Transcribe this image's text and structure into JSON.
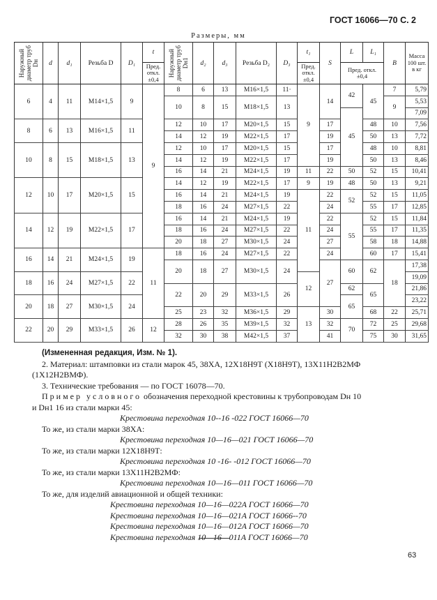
{
  "header": {
    "title": "ГОСТ 16066—70 С. 2"
  },
  "caption": "Размеры, мм",
  "table": {
    "headers": {
      "Dn": "Наружный\nдиаметр труб\nDн",
      "d": "d",
      "d1": "d₁",
      "D": "Резьба D",
      "D1": "D₁",
      "t": "t",
      "t_tol": "Пред.\nоткл.\n±0,4",
      "Dn1": "Наружный\nдиаметр труб\nDн1",
      "d2": "d₂",
      "d3": "d₃",
      "D2": "Резьба D₂",
      "D3": "D₃",
      "t1": "t₁",
      "t1_tol": "Пред.\nоткл.\n±0,4",
      "S": "S",
      "L": "L",
      "L1": "L₁",
      "L_tol": "Пред. откл.\n±0,4",
      "B": "B",
      "mass": "Масса\n100 шт.\nв кг"
    },
    "columns": [
      [
        [
          "6",
          3
        ],
        [
          "8",
          2
        ],
        [
          "10",
          3
        ],
        [
          "12",
          3
        ],
        [
          "14",
          3
        ],
        [
          "16",
          2
        ],
        [
          "18",
          2
        ],
        [
          "20",
          2
        ],
        [
          "22",
          2
        ]
      ],
      [
        [
          "4",
          3
        ],
        [
          "6",
          2
        ],
        [
          "8",
          3
        ],
        [
          "10",
          3
        ],
        [
          "12",
          3
        ],
        [
          "14",
          2
        ],
        [
          "16",
          2
        ],
        [
          "18",
          2
        ],
        [
          "20",
          2
        ]
      ],
      [
        [
          "11",
          3
        ],
        [
          "13",
          2
        ],
        [
          "15",
          3
        ],
        [
          "17",
          3
        ],
        [
          "19",
          3
        ],
        [
          "21",
          2
        ],
        [
          "24",
          2
        ],
        [
          "27",
          2
        ],
        [
          "29",
          2
        ]
      ],
      [
        [
          "M14×1,5",
          3
        ],
        [
          "M16×1,5",
          2
        ],
        [
          "M18×1,5",
          3
        ],
        [
          "M20×1,5",
          3
        ],
        [
          "M22×1,5",
          3
        ],
        [
          "M24×1,5",
          2
        ],
        [
          "M27×1,5",
          2
        ],
        [
          "M30×1,5",
          2
        ],
        [
          "M33×1,5",
          2
        ]
      ],
      [
        [
          "9",
          3
        ],
        [
          "11",
          2
        ],
        [
          "13",
          3
        ],
        [
          "15",
          3
        ],
        [
          "17",
          3
        ],
        [
          "19",
          2
        ],
        [
          "22",
          2
        ],
        [
          "24",
          2
        ],
        [
          "26",
          2
        ]
      ],
      [
        [
          "9",
          14
        ],
        [
          "11",
          6
        ],
        [
          "12",
          2
        ]
      ],
      [
        [
          "8",
          1
        ],
        [
          "10",
          2
        ],
        [
          "12",
          1
        ],
        [
          "14",
          1
        ],
        [
          "12",
          1
        ],
        [
          "14",
          1
        ],
        [
          "16",
          1
        ],
        [
          "14",
          1
        ],
        [
          "16",
          1
        ],
        [
          "18",
          1
        ],
        [
          "16",
          1
        ],
        [
          "18",
          1
        ],
        [
          "20",
          1
        ],
        [
          "18",
          1
        ],
        [
          "20",
          2
        ],
        [
          "22",
          2
        ],
        [
          "25",
          1
        ],
        [
          "28",
          1
        ],
        [
          "32",
          1
        ]
      ],
      [
        [
          "6",
          1
        ],
        [
          "8",
          2
        ],
        [
          "10",
          1
        ],
        [
          "12",
          1
        ],
        [
          "10",
          1
        ],
        [
          "12",
          1
        ],
        [
          "14",
          1
        ],
        [
          "12",
          1
        ],
        [
          "14",
          1
        ],
        [
          "16",
          1
        ],
        [
          "14",
          1
        ],
        [
          "16",
          1
        ],
        [
          "18",
          1
        ],
        [
          "16",
          1
        ],
        [
          "18",
          2
        ],
        [
          "20",
          2
        ],
        [
          "23",
          1
        ],
        [
          "26",
          1
        ],
        [
          "30",
          1
        ]
      ],
      [
        [
          "13",
          1
        ],
        [
          "15",
          2
        ],
        [
          "17",
          1
        ],
        [
          "19",
          1
        ],
        [
          "17",
          1
        ],
        [
          "19",
          1
        ],
        [
          "21",
          1
        ],
        [
          "19",
          1
        ],
        [
          "21",
          1
        ],
        [
          "24",
          1
        ],
        [
          "21",
          1
        ],
        [
          "24",
          1
        ],
        [
          "27",
          1
        ],
        [
          "24",
          1
        ],
        [
          "27",
          2
        ],
        [
          "29",
          2
        ],
        [
          "32",
          1
        ],
        [
          "35",
          1
        ],
        [
          "38",
          1
        ]
      ],
      [
        [
          "M16×1,5",
          1
        ],
        [
          "M18×1,5",
          2
        ],
        [
          "M20×1,5",
          1
        ],
        [
          "M22×1,5",
          1
        ],
        [
          "M20×1,5",
          1
        ],
        [
          "M22×1,5",
          1
        ],
        [
          "M24×1,5",
          1
        ],
        [
          "M22×1,5",
          1
        ],
        [
          "M24×1,5",
          1
        ],
        [
          "M27×1,5",
          1
        ],
        [
          "M24×1,5",
          1
        ],
        [
          "M27×1,5",
          1
        ],
        [
          "M30×1,5",
          1
        ],
        [
          "M27×1,5",
          1
        ],
        [
          "M30×1,5",
          2
        ],
        [
          "M33×1,5",
          2
        ],
        [
          "M36×1,5",
          1
        ],
        [
          "M39×1,5",
          1
        ],
        [
          "M42×1,5",
          1
        ]
      ],
      [
        [
          "11·",
          1
        ],
        [
          "13",
          2
        ],
        [
          "15",
          1
        ],
        [
          "17",
          1
        ],
        [
          "15",
          1
        ],
        [
          "17",
          1
        ],
        [
          "19",
          1
        ],
        [
          "17",
          1
        ],
        [
          "19",
          1
        ],
        [
          "22",
          1
        ],
        [
          "19",
          1
        ],
        [
          "22",
          1
        ],
        [
          "24",
          1
        ],
        [
          "22",
          1
        ],
        [
          "24",
          2
        ],
        [
          "26",
          2
        ],
        [
          "29",
          1
        ],
        [
          "32",
          1
        ],
        [
          "37",
          1
        ]
      ],
      [
        [
          "9",
          7
        ],
        [
          "11",
          1
        ],
        [
          "9",
          1
        ],
        [
          "11",
          7
        ],
        [
          "12",
          3
        ],
        [
          "13",
          3
        ]
      ],
      [
        [
          "14",
          3
        ],
        [
          "17",
          1
        ],
        [
          "19",
          1
        ],
        [
          "17",
          1
        ],
        [
          "19",
          1
        ],
        [
          "22",
          1
        ],
        [
          "19",
          1
        ],
        [
          "22",
          1
        ],
        [
          "24",
          1
        ],
        [
          "22",
          1
        ],
        [
          "24",
          1
        ],
        [
          "27",
          1
        ],
        [
          "24",
          1
        ],
        [
          "27",
          4
        ],
        [
          "30",
          1
        ],
        [
          "32",
          1
        ],
        [
          "41",
          1
        ]
      ],
      [
        [
          "42",
          2
        ],
        [
          "45",
          5
        ],
        [
          "50",
          1
        ],
        [
          "48",
          1
        ],
        [
          "52",
          2
        ],
        [
          "55",
          4
        ],
        [
          "60",
          2
        ],
        [
          "62",
          1
        ],
        [
          "65",
          2
        ],
        [
          "70",
          2
        ]
      ],
      [
        [
          "45",
          3
        ],
        [
          "48",
          1
        ],
        [
          "50",
          1
        ],
        [
          "48",
          1
        ],
        [
          "50",
          1
        ],
        [
          "52",
          1
        ],
        [
          "50",
          1
        ],
        [
          "52",
          1
        ],
        [
          "55",
          1
        ],
        [
          "52",
          1
        ],
        [
          "55",
          1
        ],
        [
          "58",
          1
        ],
        [
          "60",
          1
        ],
        [
          "62",
          2
        ],
        [
          "65",
          2
        ],
        [
          "68",
          1
        ],
        [
          "72",
          1
        ],
        [
          "75",
          1
        ]
      ],
      [
        [
          "7",
          1
        ],
        [
          "9",
          2
        ],
        [
          "10",
          1
        ],
        [
          "13",
          1
        ],
        [
          "10",
          1
        ],
        [
          "13",
          1
        ],
        [
          "15",
          1
        ],
        [
          "13",
          1
        ],
        [
          "15",
          1
        ],
        [
          "17",
          1
        ],
        [
          "15",
          1
        ],
        [
          "17",
          1
        ],
        [
          "18",
          1
        ],
        [
          "17",
          1
        ],
        [
          "18",
          4
        ],
        [
          "22",
          1
        ],
        [
          "25",
          1
        ],
        [
          "30",
          1
        ]
      ],
      [
        [
          "5,79",
          1
        ],
        [
          "5,53",
          1
        ],
        [
          "7,09",
          1
        ],
        [
          "7,56",
          1
        ],
        [
          "7,72",
          1
        ],
        [
          "8,81",
          1
        ],
        [
          "8,46",
          1
        ],
        [
          "10,41",
          1
        ],
        [
          "9,21",
          1
        ],
        [
          "11,05",
          1
        ],
        [
          "12,85",
          1
        ],
        [
          "11,84",
          1
        ],
        [
          "11,35",
          1
        ],
        [
          "14,88",
          1
        ],
        [
          "15,41",
          1
        ],
        [
          "17,38",
          1
        ],
        [
          "19,09",
          1
        ],
        [
          "21,86",
          1
        ],
        [
          "23,22",
          1
        ],
        [
          "25,71",
          1
        ],
        [
          "29,68",
          1
        ],
        [
          "31,65",
          1
        ]
      ]
    ]
  },
  "text": {
    "edition": "(Измененная редакция, Изм. № 1).",
    "material_1": "2. Материал: штамповки из стали марок 45, 38ХА,    12Х18Н9Т    (Х18Н9Т),    13Х11Н2В2МФ",
    "material_2": "(1Х12Н2ВМФ).",
    "tech": "3. Технические  требования  —  по  ГОСТ 16078—70.",
    "example_label": "Пример условного",
    "example_1": " обозначения переходной крестовины к трубопроводам Dн  10",
    "example_2": "и Dн1  16 из стали марки 45:",
    "des_1": "Крестовина переходная 10--16 -022 ГОСТ 16066—70",
    "same_38": "То же, из стали марки 38ХА:",
    "des_2": "Крестовина переходная 10—16—021 ГОСТ 16066—70",
    "same_12": "То же, из стали марки 12Х18Н9Т:",
    "des_3": "Крестовина переходная 10 -16- -012 ГОСТ 16066—70",
    "same_13": "То же, из стали марки 13Х11Н2В2МФ:",
    "des_4": "Крестовина переходная 10—16—011 ГОСТ 16066—70",
    "same_avia": "То же, для изделий  авиационной  и  общей  техники:",
    "des_5": "Крестовина переходная 10—16—022А ГОСТ 16066—70",
    "des_6": "Крестовина переходная 10—16—021А ГОСТ 16066--70",
    "des_7": "Крестовина переходная 10—16—012А ГОСТ 16066—70",
    "des_8": "Крестовина переходная 10—16—011А ГОСТ 16066—70"
  },
  "page_number": "63"
}
